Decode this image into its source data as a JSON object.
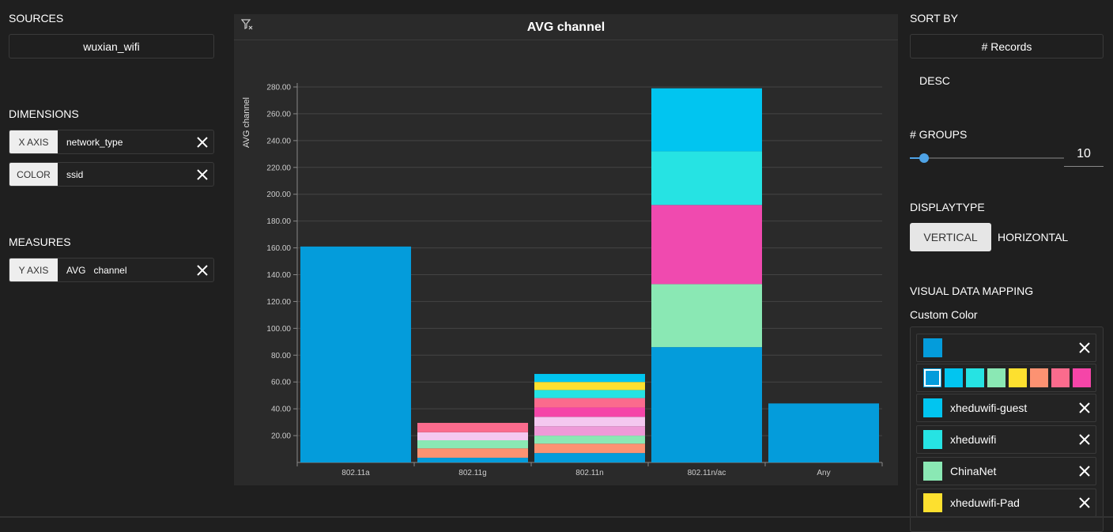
{
  "sources": {
    "title": "SOURCES",
    "selected": "wuxian_wifi"
  },
  "dimensions": {
    "title": "DIMENSIONS",
    "items": [
      {
        "tag": "X AXIS",
        "value": "network_type"
      },
      {
        "tag": "COLOR",
        "value": "ssid"
      }
    ]
  },
  "measures": {
    "title": "MEASURES",
    "items": [
      {
        "tag": "Y AXIS",
        "value": "AVG   channel"
      }
    ]
  },
  "chart": {
    "title": "AVG channel",
    "filter_icon": "filter-clear-icon"
  },
  "chart_data": {
    "type": "bar",
    "stacked": true,
    "title": "AVG channel",
    "ylabel": "AVG channel",
    "xlabel": "",
    "ylim": [
      0,
      280
    ],
    "yticks": [
      "20.00",
      "40.00",
      "60.00",
      "80.00",
      "100.00",
      "120.00",
      "140.00",
      "160.00",
      "180.00",
      "200.00",
      "220.00",
      "240.00",
      "260.00",
      "280.00"
    ],
    "categories": [
      "802.11a",
      "802.11g",
      "802.11n",
      "802.11n/ac",
      "Any"
    ],
    "grid": true,
    "stacks": [
      {
        "category": "802.11a",
        "segments": [
          {
            "value": 161,
            "color": "#049cdb"
          }
        ]
      },
      {
        "category": "802.11g",
        "segments": [
          {
            "value": 3.5,
            "color": "#049cdb"
          },
          {
            "value": 7,
            "color": "#fc9272"
          },
          {
            "value": 6,
            "color": "#8ae8b4"
          },
          {
            "value": 6,
            "color": "#f4c8f0"
          },
          {
            "value": 7,
            "color": "#fb6b8d"
          }
        ]
      },
      {
        "category": "802.11n",
        "segments": [
          {
            "value": 7,
            "color": "#049cdb"
          },
          {
            "value": 7,
            "color": "#fc9272"
          },
          {
            "value": 6,
            "color": "#8ae8b4"
          },
          {
            "value": 7,
            "color": "#ee9ad8"
          },
          {
            "value": 7,
            "color": "#f4c8f0"
          },
          {
            "value": 7,
            "color": "#f545a8"
          },
          {
            "value": 7,
            "color": "#fb6b8d"
          },
          {
            "value": 6,
            "color": "#26e3e3"
          },
          {
            "value": 6,
            "color": "#fde02f"
          },
          {
            "value": 6,
            "color": "#01c5f0"
          }
        ]
      },
      {
        "category": "802.11n/ac",
        "segments": [
          {
            "value": 86,
            "color": "#049cdb"
          },
          {
            "value": 47,
            "color": "#8ae8b4"
          },
          {
            "value": 59,
            "color": "#f04aaf"
          },
          {
            "value": 40,
            "color": "#26e3e3"
          },
          {
            "value": 47,
            "color": "#01c5f0"
          }
        ]
      },
      {
        "category": "Any",
        "segments": [
          {
            "value": 44,
            "color": "#049cdb"
          }
        ]
      }
    ]
  },
  "sort": {
    "title": "SORT BY",
    "field": "# Records",
    "order": "DESC"
  },
  "groups": {
    "title": "# GROUPS",
    "value": "10",
    "slider_fraction": 0.09
  },
  "display_type": {
    "title": "DISPLAYTYPE",
    "options": [
      "VERTICAL",
      "HORIZONTAL"
    ],
    "selected": "VERTICAL"
  },
  "visual_mapping": {
    "title": "VISUAL DATA MAPPING",
    "subtitle": "Custom Color",
    "current_color": "#049cdb",
    "palette": [
      "#049cdb",
      "#01c5f0",
      "#26e3e3",
      "#8ae8b4",
      "#fde02f",
      "#fc9272",
      "#fb6b8d",
      "#f545a8"
    ],
    "entries": [
      {
        "label": "xheduwifi-guest",
        "color": "#01c5f0"
      },
      {
        "label": "xheduwifi",
        "color": "#26e3e3"
      },
      {
        "label": "ChinaNet",
        "color": "#8ae8b4"
      },
      {
        "label": "xheduwifi-Pad",
        "color": "#fde02f"
      }
    ]
  }
}
